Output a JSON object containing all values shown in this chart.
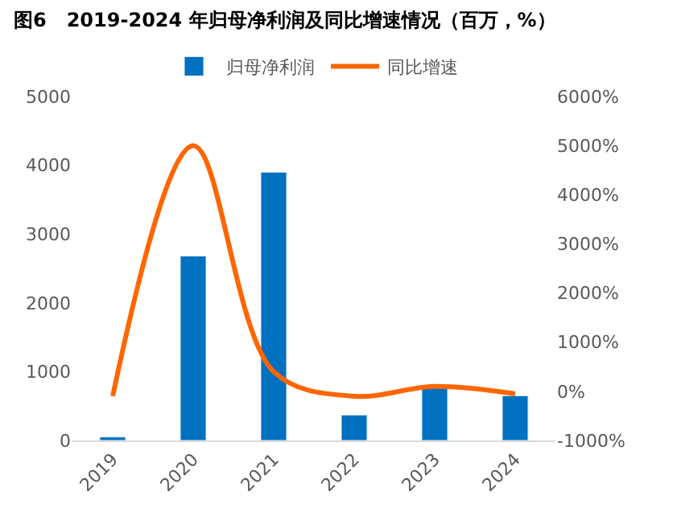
{
  "chart_data": {
    "type": "bar",
    "title": "图6   2019-2024 年归母净利润及同比增速情况（百万，%）",
    "categories": [
      "2019",
      "2020",
      "2021",
      "2022",
      "2023",
      "2024"
    ],
    "series": [
      {
        "name": "归母净利润",
        "color": "#0070c0",
        "values": [
          50,
          2680,
          3900,
          370,
          800,
          650
        ]
      },
      {
        "name": "同比增速",
        "type": "line",
        "axis": "y2",
        "color": "#ff6600",
        "values": [
          -100,
          5000,
          400,
          -100,
          100,
          -50
        ]
      }
    ],
    "ylim": [
      0,
      5000
    ],
    "yticks": [
      0,
      1000,
      2000,
      3000,
      4000,
      5000
    ],
    "y2lim": [
      -1000,
      6000
    ],
    "y2ticks": [
      {
        "value": -1000,
        "label": "-1000%"
      },
      {
        "value": 0,
        "label": "0%"
      },
      {
        "value": 1000,
        "label": "1000%"
      },
      {
        "value": 2000,
        "label": "2000%"
      },
      {
        "value": 3000,
        "label": "3000%"
      },
      {
        "value": 4000,
        "label": "4000%"
      },
      {
        "value": 5000,
        "label": "5000%"
      },
      {
        "value": 6000,
        "label": "6000%"
      }
    ],
    "legend": "top"
  }
}
